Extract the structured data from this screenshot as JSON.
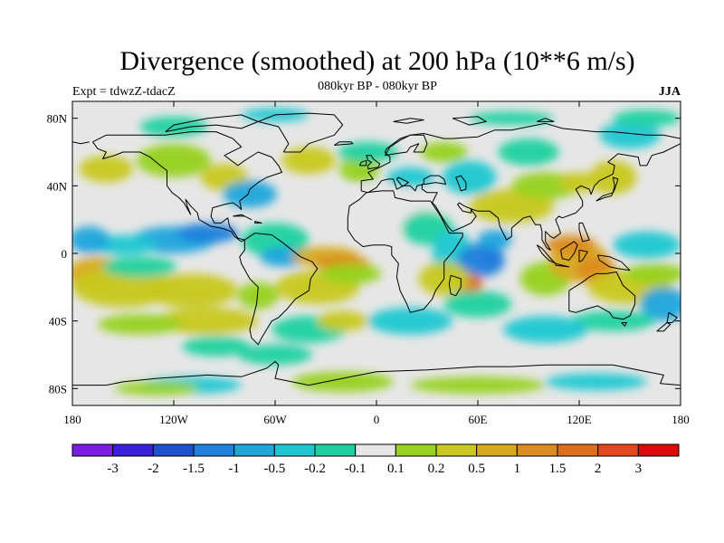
{
  "title": "Divergence (smoothed) at 200 hPa (10**6 m/s)",
  "experiment": "Expt = tdwzZ-tdacZ",
  "period": "080kyr BP - 080kyr BP",
  "season": "JJA",
  "axes": {
    "lat_labels": [
      "80N",
      "40N",
      "0",
      "40S",
      "80S"
    ],
    "lat_values": [
      80,
      40,
      0,
      -40,
      -80
    ],
    "lon_labels": [
      "180",
      "120W",
      "60W",
      "0",
      "60E",
      "120E",
      "180"
    ],
    "lon_values": [
      -180,
      -120,
      -60,
      0,
      60,
      120,
      180
    ],
    "lat_range": [
      -90,
      90
    ],
    "lon_range": [
      -180,
      180
    ]
  },
  "colorbar": {
    "labels": [
      "-3",
      "-2",
      "-1.5",
      "-1",
      "-0.5",
      "-0.2",
      "-0.1",
      "0.1",
      "0.2",
      "0.5",
      "1",
      "1.5",
      "2",
      "3"
    ],
    "colors": [
      "#7d1ee6",
      "#3a1ee0",
      "#1e50d2",
      "#1e82dc",
      "#1ea5dc",
      "#1ec8d2",
      "#1ed2a0",
      "#e6e6e6",
      "#96d21e",
      "#c8c81e",
      "#d7aa1e",
      "#dc8c1e",
      "#dc6e1e",
      "#e6461e",
      "#dc0a0a"
    ]
  },
  "colors": {
    "background_field": "#e6e6e6",
    "coastline": "#000000"
  }
}
